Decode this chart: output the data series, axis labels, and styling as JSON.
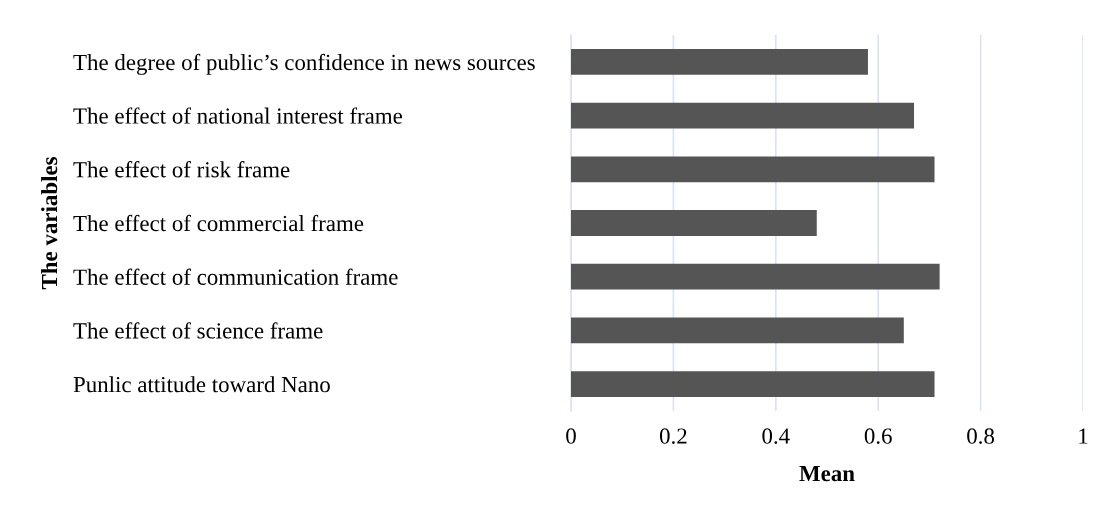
{
  "chart_data": {
    "type": "bar",
    "orientation": "horizontal",
    "xlabel": "Mean",
    "ylabel": "The variables",
    "categories": [
      "The degree of public’s confidence in news sources",
      "The effect of national interest frame",
      "The effect of risk frame",
      "The effect of commercial frame",
      "The effect of communication frame",
      "The effect of science frame",
      "Punlic attitude toward Nano"
    ],
    "values": [
      0.58,
      0.67,
      0.71,
      0.48,
      0.72,
      0.65,
      0.71
    ],
    "color": "#555555",
    "xlim": [
      0,
      1
    ],
    "xticks": [
      0,
      0.2,
      0.4,
      0.6,
      0.8,
      1
    ],
    "grid": "x",
    "legend": false
  }
}
